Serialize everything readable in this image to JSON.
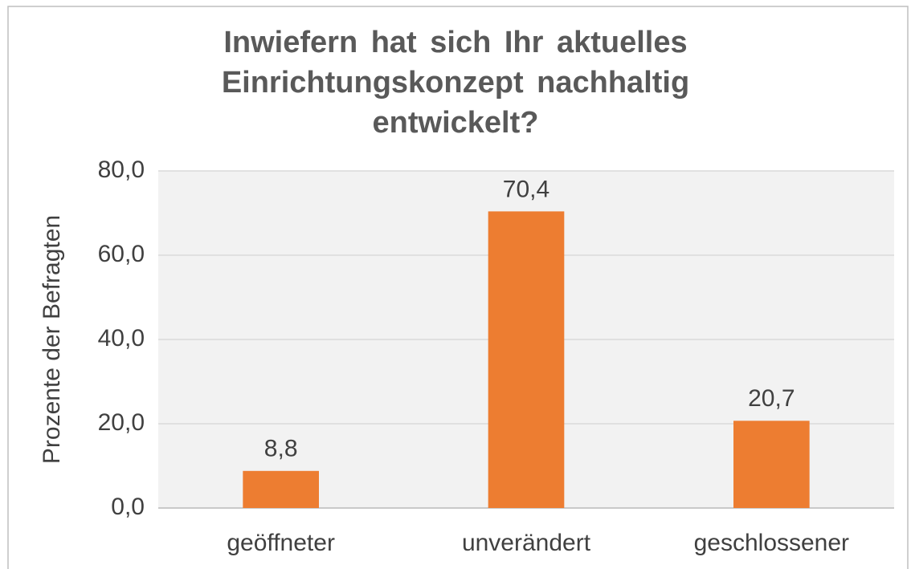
{
  "chart_data": {
    "type": "bar",
    "title": "Inwiefern hat sich Ihr aktuelles Einrichtungskonzept nachhaltig entwickelt?",
    "y_label": "Prozente der Befragten",
    "categories": [
      "geöffneter",
      "unverändert",
      "geschlossener"
    ],
    "values": [
      8.8,
      70.4,
      20.7
    ],
    "value_labels": [
      "8,8",
      "70,4",
      "20,7"
    ],
    "color": "#ed7d31",
    "ylim": [
      0,
      80
    ],
    "yticks": [
      {
        "value": 0,
        "label": "0,0"
      },
      {
        "value": 20,
        "label": "20,0"
      },
      {
        "value": 40,
        "label": "40,0"
      },
      {
        "value": 60,
        "label": "60,0"
      },
      {
        "value": 80,
        "label": "80,0"
      }
    ],
    "grid": true
  }
}
